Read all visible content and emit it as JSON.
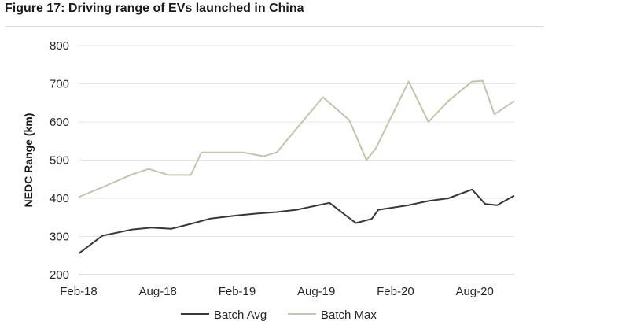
{
  "figure": {
    "title": "Figure 17: Driving range of EVs launched in China"
  },
  "chart_data": {
    "type": "line",
    "title": "Figure 17: Driving range of EVs launched in China",
    "xlabel": "",
    "ylabel": "NEDC Range (km)",
    "ylim": [
      200,
      800
    ],
    "yticks": [
      "200",
      "300",
      "400",
      "500",
      "600",
      "700",
      "800"
    ],
    "xlim": [
      0,
      32
    ],
    "xticks": [
      {
        "label": "Feb-18",
        "x": 0
      },
      {
        "label": "Aug-18",
        "x": 6
      },
      {
        "label": "Feb-19",
        "x": 12
      },
      {
        "label": "Aug-19",
        "x": 18
      },
      {
        "label": "Feb-20",
        "x": 24
      },
      {
        "label": "Aug-20",
        "x": 30
      }
    ],
    "grid": true,
    "legend": "bottom",
    "series": [
      {
        "name": "Batch Avg",
        "color": "#3a3631",
        "points": [
          [
            0,
            255
          ],
          [
            1.8,
            302
          ],
          [
            4,
            318
          ],
          [
            5.5,
            323
          ],
          [
            7,
            320
          ],
          [
            8.5,
            333
          ],
          [
            10,
            347
          ],
          [
            12,
            355
          ],
          [
            13.5,
            360
          ],
          [
            15,
            364
          ],
          [
            16.5,
            370
          ],
          [
            19,
            388
          ],
          [
            21,
            335
          ],
          [
            22.2,
            346
          ],
          [
            22.7,
            370
          ],
          [
            25,
            382
          ],
          [
            26.5,
            393
          ],
          [
            28,
            400
          ],
          [
            29.8,
            423
          ],
          [
            30.8,
            385
          ],
          [
            31.7,
            382
          ],
          [
            33,
            407
          ]
        ]
      },
      {
        "name": "Batch Max",
        "color": "#c5c3ab",
        "points": [
          [
            0,
            403
          ],
          [
            2,
            432
          ],
          [
            4,
            462
          ],
          [
            5.3,
            477
          ],
          [
            6.8,
            461
          ],
          [
            8.5,
            461
          ],
          [
            9.3,
            520
          ],
          [
            12.5,
            520
          ],
          [
            14,
            510
          ],
          [
            15,
            520
          ],
          [
            18.5,
            665
          ],
          [
            20.5,
            605
          ],
          [
            21.8,
            500
          ],
          [
            22.5,
            530
          ],
          [
            25,
            706
          ],
          [
            26.5,
            600
          ],
          [
            28,
            655
          ],
          [
            29.8,
            706
          ],
          [
            30.6,
            708
          ],
          [
            31.5,
            620
          ],
          [
            33,
            655
          ]
        ]
      }
    ]
  }
}
